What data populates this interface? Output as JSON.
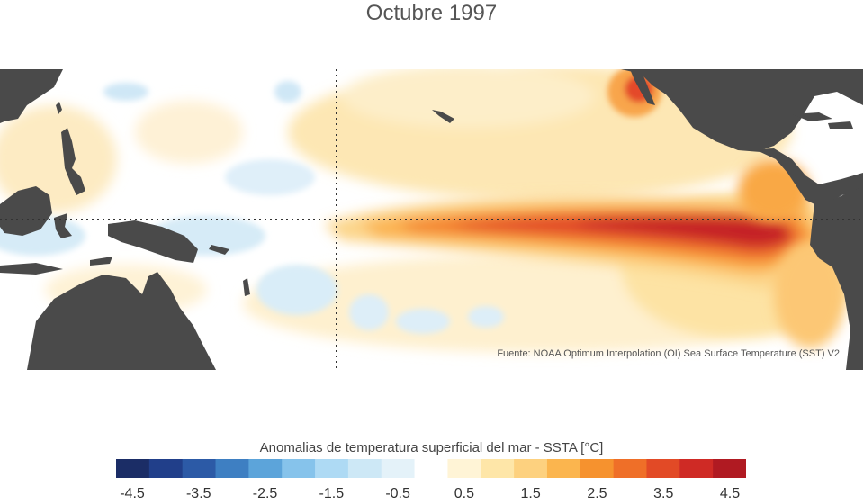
{
  "title": "Octubre 1997",
  "source_note": "Fuente: NOAA Optimum Interpolation (OI) Sea Surface Temperature (SST) V2",
  "colorbar": {
    "title": "Anomalias de temperatura superficial del mar - SSTA  [°C]",
    "labels": [
      "-4.5",
      "-3.5",
      "-2.5",
      "-1.5",
      "-0.5",
      "0.5",
      "1.5",
      "2.5",
      "3.5",
      "4.5"
    ],
    "colors": [
      "#1b2d66",
      "#213f8a",
      "#2c5aa6",
      "#3e7fc2",
      "#5ca4da",
      "#86c3eb",
      "#aedaf4",
      "#cde8f6",
      "#e4f2f9",
      "#ffffff",
      "#fff4d6",
      "#fee6a8",
      "#fdd17f",
      "#fbb54e",
      "#f6922e",
      "#ef6f28",
      "#e24a26",
      "#cf2a25",
      "#b01a22"
    ]
  },
  "colors": {
    "land": "#4a4a4a",
    "ocean_neutral": "#ffffff",
    "warm_strong": "#c0182a",
    "warm_mid": "#f49a3a",
    "warm_light": "#fde3a7",
    "cool_light": "#d8ecf7"
  }
}
